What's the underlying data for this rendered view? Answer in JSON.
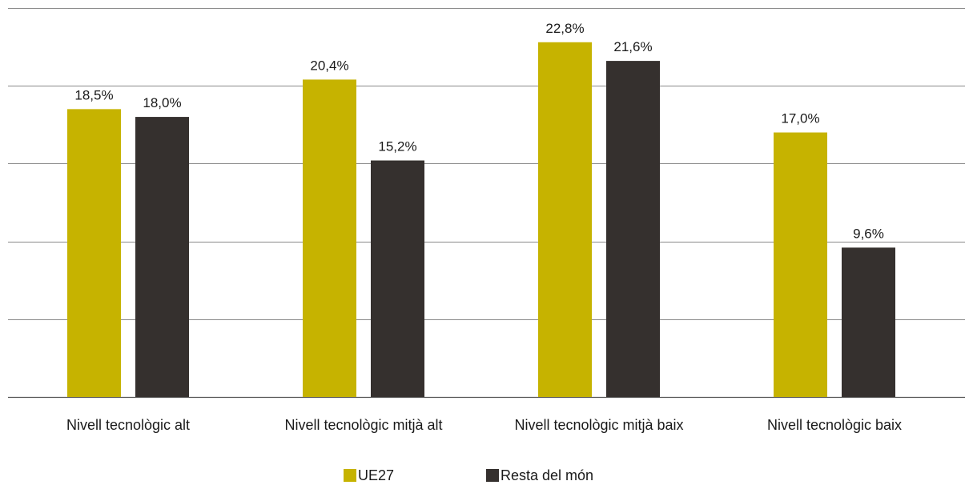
{
  "chart_data": {
    "type": "bar",
    "categories": [
      "Nivell tecnològic alt",
      "Nivell tecnològic mitjà alt",
      "Nivell tecnològic mitjà baix",
      "Nivell tecnològic baix"
    ],
    "series": [
      {
        "name": "UE27",
        "values": [
          18.5,
          20.4,
          22.8,
          17.0
        ],
        "labels": [
          "18,5%",
          "20,4%",
          "22,8%",
          "17,0%"
        ],
        "color": "#c6b300"
      },
      {
        "name": "Resta del món",
        "values": [
          18.0,
          15.2,
          21.6,
          9.6
        ],
        "labels": [
          "18,0%",
          "15,2%",
          "21,6%",
          "9,6%"
        ],
        "color": "#35302e"
      }
    ],
    "ylim": [
      0,
      25
    ],
    "grid": true,
    "legend_position": "bottom-center",
    "title": "",
    "xlabel": "",
    "ylabel": ""
  }
}
